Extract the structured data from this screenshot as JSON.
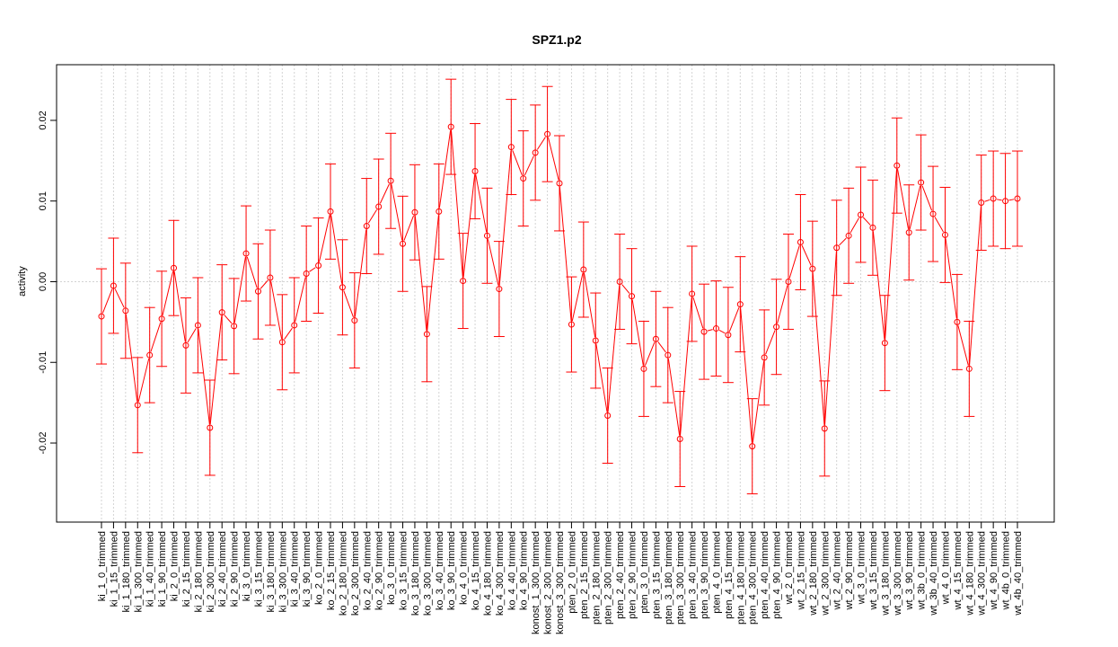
{
  "chart_data": {
    "type": "line",
    "title": "SPZ1.p2",
    "xlabel": "",
    "ylabel": "activity",
    "ylim": [
      -0.0298,
      0.0269
    ],
    "yticks": [
      -0.02,
      -0.01,
      0.0,
      0.01,
      0.02
    ],
    "ytick_labels": [
      "-0.02",
      "-0.01",
      "0.00",
      "0.01",
      "0.02"
    ],
    "grid": true,
    "series_color": "#ff0000",
    "grid_color": "#d3d3d3",
    "categories": [
      "ki_1_0_trimmed",
      "ki_1_15_trimmed",
      "ki_1_180_trimmed",
      "ki_1_300_trimmed",
      "ki_1_40_trimmed",
      "ki_1_90_trimmed",
      "ki_2_0_trimmed",
      "ki_2_15_trimmed",
      "ki_2_180_trimmed",
      "ki_2_300_trimmed",
      "ki_2_40_trimmed",
      "ki_2_90_trimmed",
      "ki_3_0_trimmed",
      "ki_3_15_trimmed",
      "ki_3_180_trimmed",
      "ki_3_300_trimmed",
      "ki_3_40_trimmed",
      "ki_3_90_trimmed",
      "ko_2_0_trimmed",
      "ko_2_15_trimmed",
      "ko_2_180_trimmed",
      "ko_2_300_trimmed",
      "ko_2_40_trimmed",
      "ko_2_90_trimmed",
      "ko_3_0_trimmed",
      "ko_3_15_trimmed",
      "ko_3_180_trimmed",
      "ko_3_300_trimmed",
      "ko_3_40_trimmed",
      "ko_3_90_trimmed",
      "ko_4_0_trimmed",
      "ko_4_15_trimmed",
      "ko_4_180_trimmed",
      "ko_4_300_trimmed",
      "ko_4_40_trimmed",
      "ko_4_90_trimmed",
      "konost_1_300_trimmed",
      "konost_2_300_trimmed",
      "konost_3_300_trimmed",
      "pten_2_0_trimmed",
      "pten_2_15_trimmed",
      "pten_2_180_trimmed",
      "pten_2_300_trimmed",
      "pten_2_40_trimmed",
      "pten_2_90_trimmed",
      "pten_3_0_trimmed",
      "pten_3_15_trimmed",
      "pten_3_180_trimmed",
      "pten_3_300_trimmed",
      "pten_3_40_trimmed",
      "pten_3_90_trimmed",
      "pten_4_0_trimmed",
      "pten_4_15_trimmed",
      "pten_4_180_trimmed",
      "pten_4_300_trimmed",
      "pten_4_40_trimmed",
      "pten_4_90_trimmed",
      "wt_2_0_trimmed",
      "wt_2_15_trimmed",
      "wt_2_180_trimmed",
      "wt_2_300_trimmed",
      "wt_2_40_trimmed",
      "wt_2_90_trimmed",
      "wt_3_0_trimmed",
      "wt_3_15_trimmed",
      "wt_3_180_trimmed",
      "wt_3_300_trimmed",
      "wt_3_90_trimmed",
      "wt_3b_0_trimmed",
      "wt_3b_40_trimmed",
      "wt_4_0_trimmed",
      "wt_4_15_trimmed",
      "wt_4_180_trimmed",
      "wt_4_300_trimmed",
      "wt_4_90_trimmed",
      "wt_4b_0_trimmed",
      "wt_4b_40_trimmed"
    ],
    "values": [
      -0.0043,
      -0.0005,
      -0.0036,
      -0.0153,
      -0.0091,
      -0.0046,
      0.0017,
      -0.0079,
      -0.0054,
      -0.0181,
      -0.0038,
      -0.0055,
      0.0035,
      -0.0012,
      0.0005,
      -0.0075,
      -0.0054,
      0.001,
      0.002,
      0.0087,
      -0.0007,
      -0.0048,
      0.0069,
      0.0093,
      0.0125,
      0.0047,
      0.0086,
      -0.0065,
      0.0087,
      0.0192,
      0.0001,
      0.0137,
      0.0057,
      -0.0009,
      0.0167,
      0.0128,
      0.016,
      0.0183,
      0.0122,
      -0.0053,
      0.0015,
      -0.0073,
      -0.0166,
      0.0,
      -0.0018,
      -0.0108,
      -0.0071,
      -0.0091,
      -0.0195,
      -0.0015,
      -0.0062,
      -0.0058,
      -0.0066,
      -0.0028,
      -0.0204,
      -0.0094,
      -0.0056,
      0.0,
      0.0049,
      0.0016,
      -0.0182,
      0.0042,
      0.0057,
      0.0083,
      0.0067,
      -0.0076,
      0.0144,
      0.0061,
      0.0123,
      0.0084,
      0.0058,
      -0.005,
      -0.0108,
      0.0098,
      0.0103,
      0.01,
      0.0103
    ],
    "error": 0.0059
  }
}
